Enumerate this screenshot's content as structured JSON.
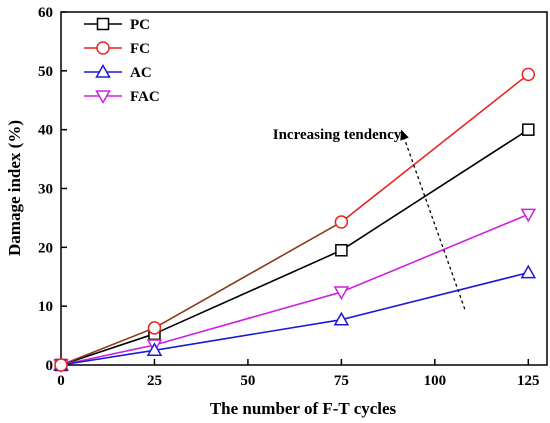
{
  "chart_data": {
    "type": "line",
    "xlabel": "The number of F-T cycles",
    "ylabel": "Damage index (%)",
    "xlim": [
      0,
      130
    ],
    "ylim": [
      0,
      60
    ],
    "xticks": [
      0,
      25,
      50,
      75,
      100,
      125
    ],
    "yticks": [
      0,
      10,
      20,
      30,
      40,
      50,
      60
    ],
    "grid": false,
    "legend_position": "top-left",
    "series": [
      {
        "name": "PC",
        "color": "#000000",
        "marker": "square",
        "x": [
          0,
          25,
          75,
          125
        ],
        "y": [
          0,
          5.3,
          19.5,
          40.0
        ]
      },
      {
        "name": "FC",
        "color": "#e8251e",
        "marker": "circle",
        "x": [
          0,
          25,
          75,
          125
        ],
        "y": [
          0,
          6.3,
          24.3,
          49.4
        ],
        "segment_colors": [
          "#8b3a1a",
          "#8b3a1a",
          "#e8251e"
        ]
      },
      {
        "name": "AC",
        "color": "#1a1ad6",
        "marker": "triangle-up",
        "x": [
          0,
          25,
          75,
          125
        ],
        "y": [
          0,
          2.5,
          7.7,
          15.7
        ]
      },
      {
        "name": "FAC",
        "color": "#cc22dd",
        "marker": "triangle-down",
        "x": [
          0,
          25,
          75,
          125
        ],
        "y": [
          0,
          3.4,
          12.4,
          25.6
        ]
      }
    ],
    "annotations": [
      {
        "text": "Increasing tendency",
        "arrow_from": [
          108,
          9.5
        ],
        "arrow_to": [
          91,
          40.0
        ],
        "arrow_style": "dashed"
      }
    ]
  }
}
